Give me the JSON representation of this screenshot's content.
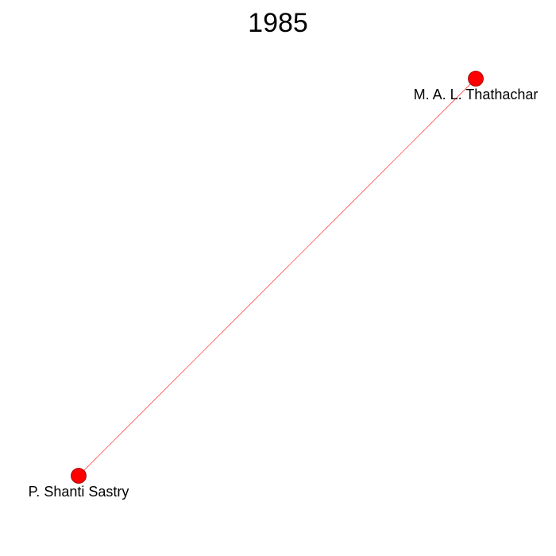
{
  "title": "1985",
  "colors": {
    "node_fill": "#ff0000",
    "node_stroke": "#8b0000",
    "edge": "#ff0000"
  },
  "nodes": [
    {
      "id": "n1",
      "label": "M. A. L. Thathachar"
    },
    {
      "id": "n2",
      "label": "P. Shanti Sastry"
    }
  ],
  "edges": [
    {
      "source": "n1",
      "target": "n2"
    }
  ]
}
